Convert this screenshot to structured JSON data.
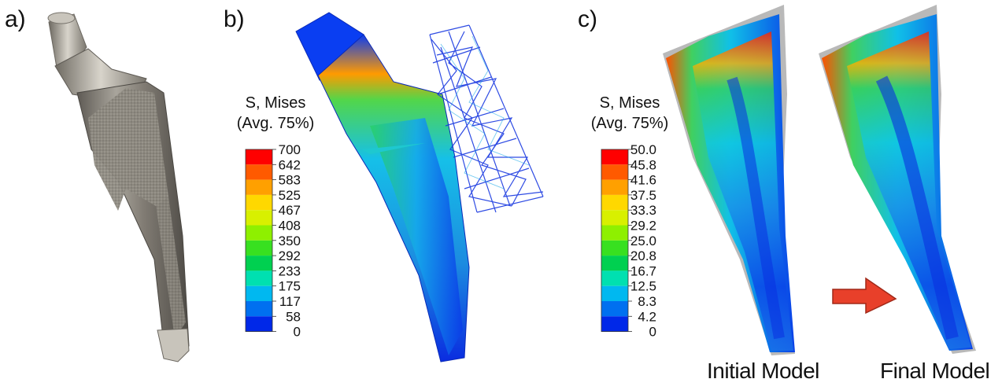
{
  "panels": {
    "a": {
      "label": "a)"
    },
    "b": {
      "label": "b)",
      "legend": {
        "title_line1": "S, Mises",
        "title_line2": "(Avg. 75%)",
        "values": [
          "700",
          "642",
          "583",
          "525",
          "467",
          "408",
          "350",
          "292",
          "233",
          "175",
          "117",
          "58",
          "0"
        ],
        "colors": [
          "#ff0000",
          "#ff5a00",
          "#ffa000",
          "#ffd800",
          "#d8f000",
          "#8ef000",
          "#38e020",
          "#00d050",
          "#00e0b0",
          "#00b8f0",
          "#0070f0",
          "#0028e8"
        ]
      }
    },
    "c": {
      "label": "c)",
      "legend": {
        "title_line1": "S, Mises",
        "title_line2": "(Avg. 75%)",
        "values": [
          "50.0",
          "45.8",
          "41.6",
          "37.5",
          "33.3",
          "29.2",
          "25.0",
          "20.8",
          "16.7",
          "12.5",
          "8.3",
          "4.2",
          "0"
        ],
        "colors": [
          "#ff0000",
          "#ff5a00",
          "#ffa000",
          "#ffd800",
          "#d8f000",
          "#8ef000",
          "#38e020",
          "#00d050",
          "#00e0b0",
          "#00b8f0",
          "#0070f0",
          "#0028e8"
        ]
      },
      "captions": {
        "initial": "Initial Model",
        "final": "Final Model"
      }
    }
  },
  "colors": {
    "arrow": "#e8402a",
    "implant_metal": "#8e8a82"
  }
}
